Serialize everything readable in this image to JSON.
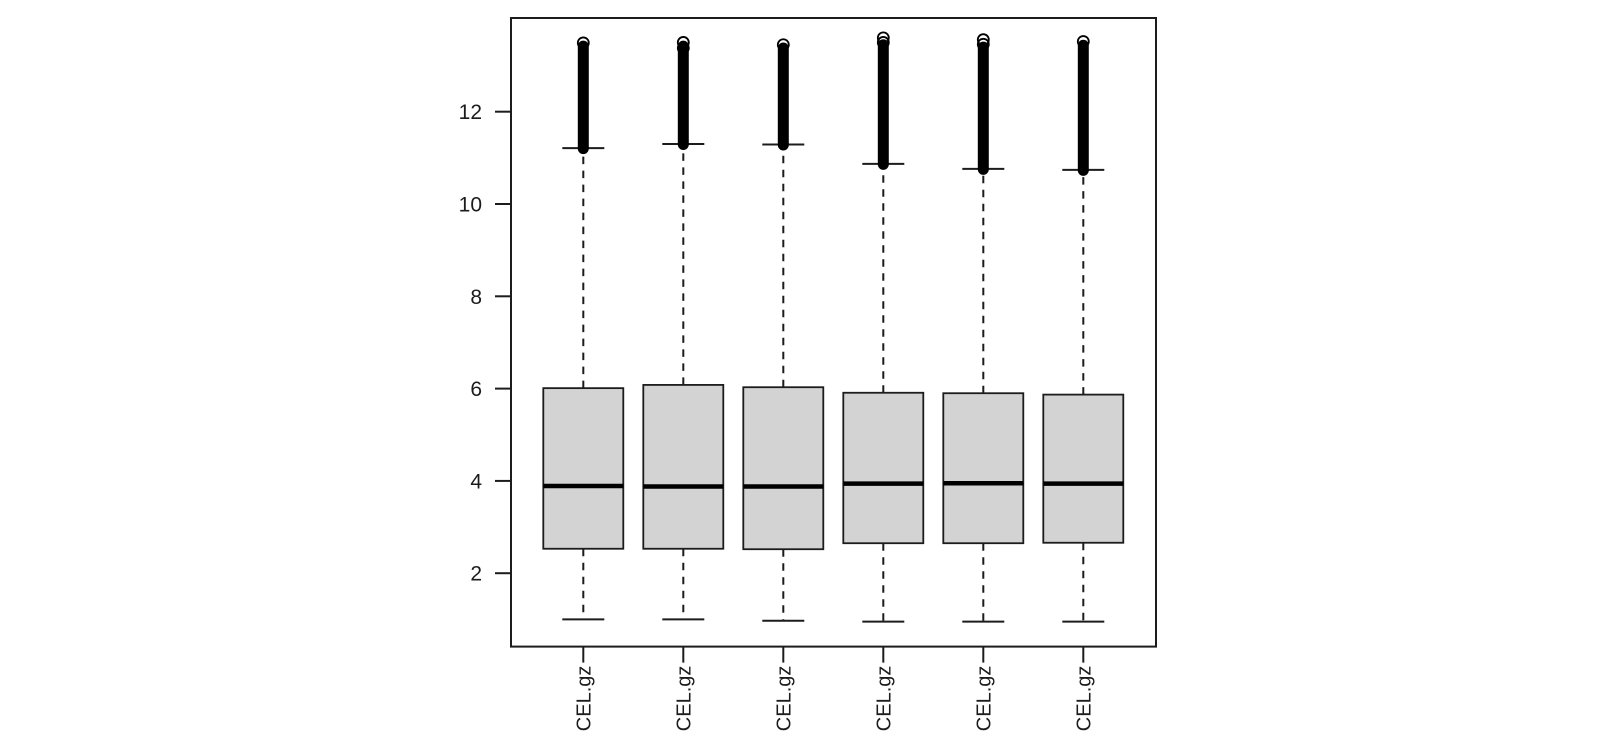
{
  "figure": {
    "background": "#ffffff",
    "plot_border_color": "#1c1c1c",
    "text_color": "#1c1c1c"
  },
  "chart_data": {
    "type": "boxplot",
    "orientation": "vertical",
    "title": "",
    "xlabel": "",
    "ylabel": "",
    "grid": false,
    "categories": [
      "CEL.gz",
      "CEL.gz",
      "CEL.gz",
      "CEL.gz",
      "CEL.gz",
      "CEL.gz"
    ],
    "y_ticks": [
      2,
      4,
      6,
      8,
      10,
      12
    ],
    "ylim": [
      0.41,
      14.03
    ],
    "box_fill": "#d3d3d3",
    "line_color": "#1c1c1c",
    "median_color": "#000000",
    "outlier_color": "#000000",
    "series": [
      {
        "label": "CEL.gz",
        "whisker_low": 1.0,
        "q1": 2.53,
        "median": 3.89,
        "q3": 6.01,
        "whisker_high": 11.21,
        "outlier_dense_top": 13.42,
        "outlier_circles": [
          13.49
        ]
      },
      {
        "label": "CEL.gz",
        "whisker_low": 1.0,
        "q1": 2.53,
        "median": 3.88,
        "q3": 6.08,
        "whisker_high": 11.3,
        "outlier_dense_top": 13.42,
        "outlier_circles": [
          13.5,
          13.38
        ]
      },
      {
        "label": "CEL.gz",
        "whisker_low": 0.97,
        "q1": 2.52,
        "median": 3.88,
        "q3": 6.03,
        "whisker_high": 11.29,
        "outlier_dense_top": 13.38,
        "outlier_circles": [
          13.45
        ]
      },
      {
        "label": "CEL.gz",
        "whisker_low": 0.95,
        "q1": 2.65,
        "median": 3.94,
        "q3": 5.91,
        "whisker_high": 10.87,
        "outlier_dense_top": 13.45,
        "outlier_circles": [
          13.6,
          13.5
        ]
      },
      {
        "label": "CEL.gz",
        "whisker_low": 0.95,
        "q1": 2.65,
        "median": 3.95,
        "q3": 5.9,
        "whisker_high": 10.76,
        "outlier_dense_top": 13.4,
        "outlier_circles": [
          13.56,
          13.46
        ]
      },
      {
        "label": "CEL.gz",
        "whisker_low": 0.95,
        "q1": 2.66,
        "median": 3.94,
        "q3": 5.87,
        "whisker_high": 10.74,
        "outlier_dense_top": 13.44,
        "outlier_circles": [
          13.52
        ]
      }
    ]
  }
}
